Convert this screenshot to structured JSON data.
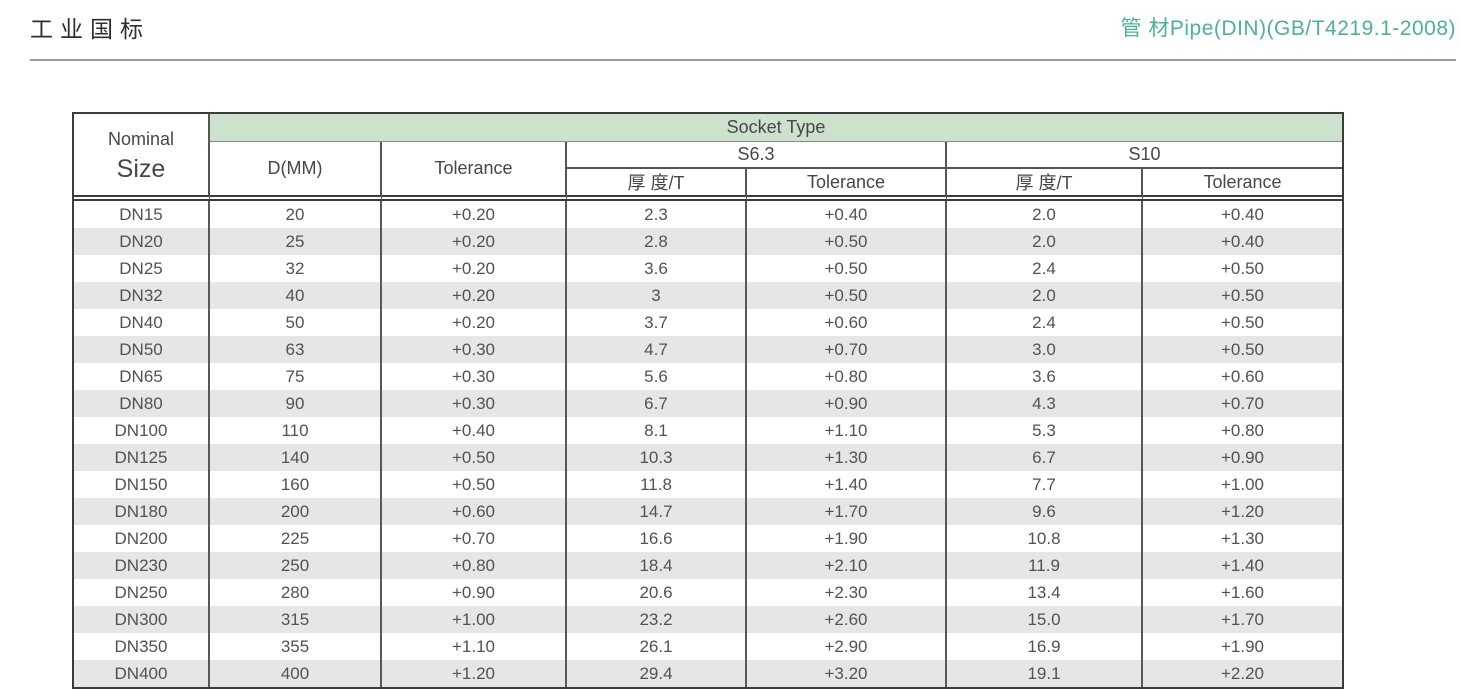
{
  "page": {
    "title_left": "工业国标",
    "title_right": "管 材Pipe(DIN)(GB/T4219.1-2008)",
    "accent_color": "#4db098"
  },
  "table": {
    "header": {
      "nominal_line1": "Nominal",
      "nominal_line2": "Size",
      "socket_type": "Socket Type",
      "d_mm": "D(MM)",
      "tolerance": "Tolerance",
      "s63": "S6.3",
      "s10": "S10",
      "thickness": "厚 度/T"
    },
    "colors": {
      "socket_header_bg": "#cde2cd",
      "row_alt_bg": "#e6e6e6",
      "border": "#3c3c3c"
    },
    "columns": [
      "Nominal Size",
      "D(MM)",
      "Tolerance",
      "S6.3 厚度/T",
      "S6.3 Tolerance",
      "S10 厚度/T",
      "S10 Tolerance"
    ],
    "rows": [
      [
        "DN15",
        "20",
        "+0.20",
        "2.3",
        "+0.40",
        "2.0",
        "+0.40"
      ],
      [
        "DN20",
        "25",
        "+0.20",
        "2.8",
        "+0.50",
        "2.0",
        "+0.40"
      ],
      [
        "DN25",
        "32",
        "+0.20",
        "3.6",
        "+0.50",
        "2.4",
        "+0.50"
      ],
      [
        "DN32",
        "40",
        "+0.20",
        "3",
        "+0.50",
        "2.0",
        "+0.50"
      ],
      [
        "DN40",
        "50",
        "+0.20",
        "3.7",
        "+0.60",
        "2.4",
        "+0.50"
      ],
      [
        "DN50",
        "63",
        "+0.30",
        "4.7",
        "+0.70",
        "3.0",
        "+0.50"
      ],
      [
        "DN65",
        "75",
        "+0.30",
        "5.6",
        "+0.80",
        "3.6",
        "+0.60"
      ],
      [
        "DN80",
        "90",
        "+0.30",
        "6.7",
        "+0.90",
        "4.3",
        "+0.70"
      ],
      [
        "DN100",
        "110",
        "+0.40",
        "8.1",
        "+1.10",
        "5.3",
        "+0.80"
      ],
      [
        "DN125",
        "140",
        "+0.50",
        "10.3",
        "+1.30",
        "6.7",
        "+0.90"
      ],
      [
        "DN150",
        "160",
        "+0.50",
        "11.8",
        "+1.40",
        "7.7",
        "+1.00"
      ],
      [
        "DN180",
        "200",
        "+0.60",
        "14.7",
        "+1.70",
        "9.6",
        "+1.20"
      ],
      [
        "DN200",
        "225",
        "+0.70",
        "16.6",
        "+1.90",
        "10.8",
        "+1.30"
      ],
      [
        "DN230",
        "250",
        "+0.80",
        "18.4",
        "+2.10",
        "11.9",
        "+1.40"
      ],
      [
        "DN250",
        "280",
        "+0.90",
        "20.6",
        "+2.30",
        "13.4",
        "+1.60"
      ],
      [
        "DN300",
        "315",
        "+1.00",
        "23.2",
        "+2.60",
        "15.0",
        "+1.70"
      ],
      [
        "DN350",
        "355",
        "+1.10",
        "26.1",
        "+2.90",
        "16.9",
        "+1.90"
      ],
      [
        "DN400",
        "400",
        "+1.20",
        "29.4",
        "+3.20",
        "19.1",
        "+2.20"
      ]
    ]
  }
}
